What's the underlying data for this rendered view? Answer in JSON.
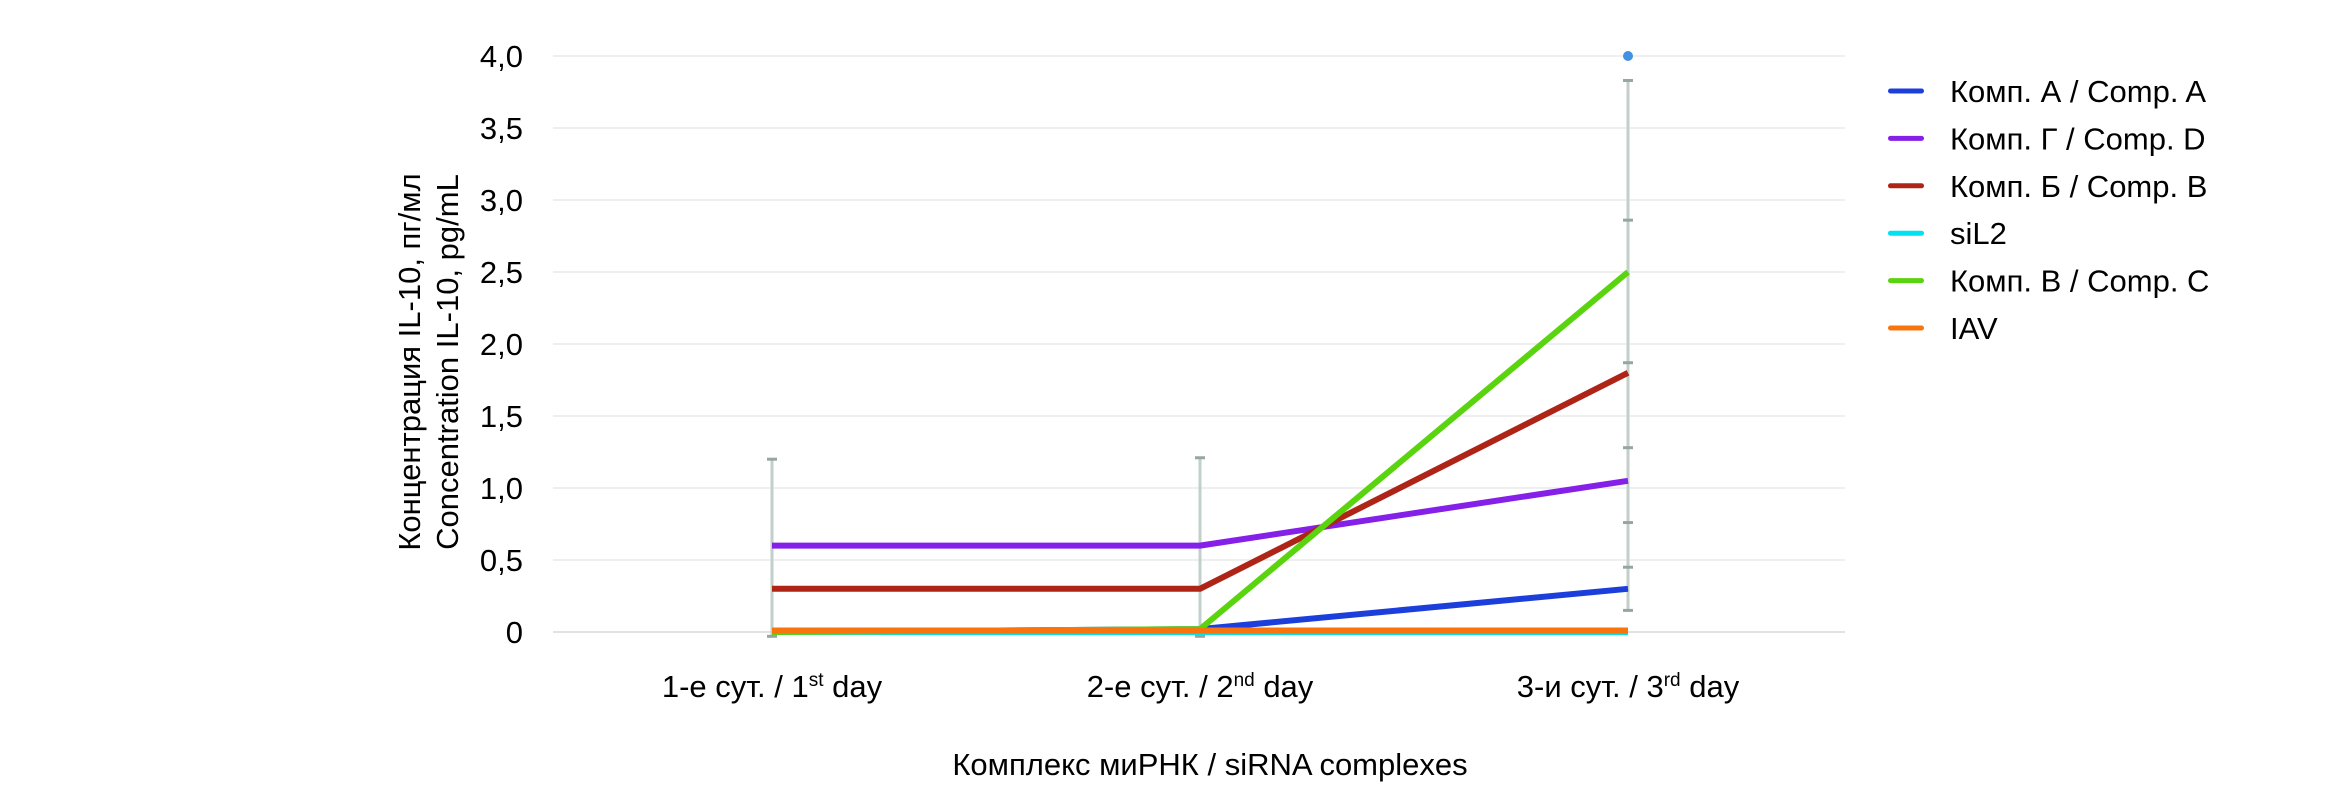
{
  "figure": {
    "background": "#ffffff"
  },
  "chart_data": {
    "type": "line",
    "title": "",
    "xlabel": "Комплекс миРНК / siRNA complexes",
    "ylabel_ru": "Концентрация IL-10, пг/мл",
    "ylabel_en": "Concentration IL-10, pg/mL",
    "ylim": [
      0,
      4
    ],
    "ytick_values": [
      0,
      0.5,
      1.0,
      1.5,
      2.0,
      2.5,
      3.0,
      3.5,
      4.0
    ],
    "ytick_labels": [
      "0",
      "0,5",
      "1,0",
      "1,5",
      "2,0",
      "2,5",
      "3,0",
      "3,5",
      "4,0"
    ],
    "grid": true,
    "legend_position": "right",
    "categories": [
      {
        "label": "1-е сут. / 1st day",
        "pre": "1-е сут. / 1",
        "sup": "st",
        "post": " day"
      },
      {
        "label": "2-е сут. / 2nd day",
        "pre": "2-е сут. / 2",
        "sup": "nd",
        "post": " day"
      },
      {
        "label": "3-и сут. / 3rd day",
        "pre": "3-и сут. / 3",
        "sup": "rd",
        "post": " day"
      }
    ],
    "series": [
      {
        "name": "Комп. А / Comp. A",
        "color": "#1c3fdb",
        "values": [
          0,
          0.02,
          0.3
        ]
      },
      {
        "name": "Комп. Г / Comp. D",
        "color": "#8520e8",
        "values": [
          0.6,
          0.6,
          1.05
        ]
      },
      {
        "name": "Комп. Б / Comp. B",
        "color": "#ae2518",
        "values": [
          0.3,
          0.3,
          1.8
        ]
      },
      {
        "name": "siL2",
        "color": "#00e1f2",
        "values": [
          0,
          0,
          0
        ]
      },
      {
        "name": "Комп. В / Comp. C",
        "color": "#5ad40e",
        "values": [
          0,
          0.02,
          2.5
        ]
      },
      {
        "name": "IAV",
        "color": "#f8740f",
        "values": [
          0.01,
          0.01,
          0.01
        ]
      }
    ],
    "error_bars": [
      {
        "category_index": 0,
        "top": 1.2,
        "bottom": -0.03,
        "caps": [
          1.2,
          -0.03
        ]
      },
      {
        "category_index": 1,
        "top": 1.21,
        "bottom": -0.03,
        "caps": [
          1.21,
          -0.03
        ]
      },
      {
        "category_index": 2,
        "top": 3.83,
        "bottom": 0.15,
        "caps": [
          3.83,
          2.86,
          1.87,
          1.28,
          0.76,
          0.45,
          0.15
        ]
      }
    ],
    "point_markers": [
      {
        "category_index": 2,
        "value": 4.0,
        "color": "#4292e4"
      }
    ],
    "error_bar_color": "#c3cfcb",
    "error_bar_cap_color": "#96a6a3",
    "gridline_color": "#eeefee",
    "zero_line_color": "#dfe3e1"
  }
}
